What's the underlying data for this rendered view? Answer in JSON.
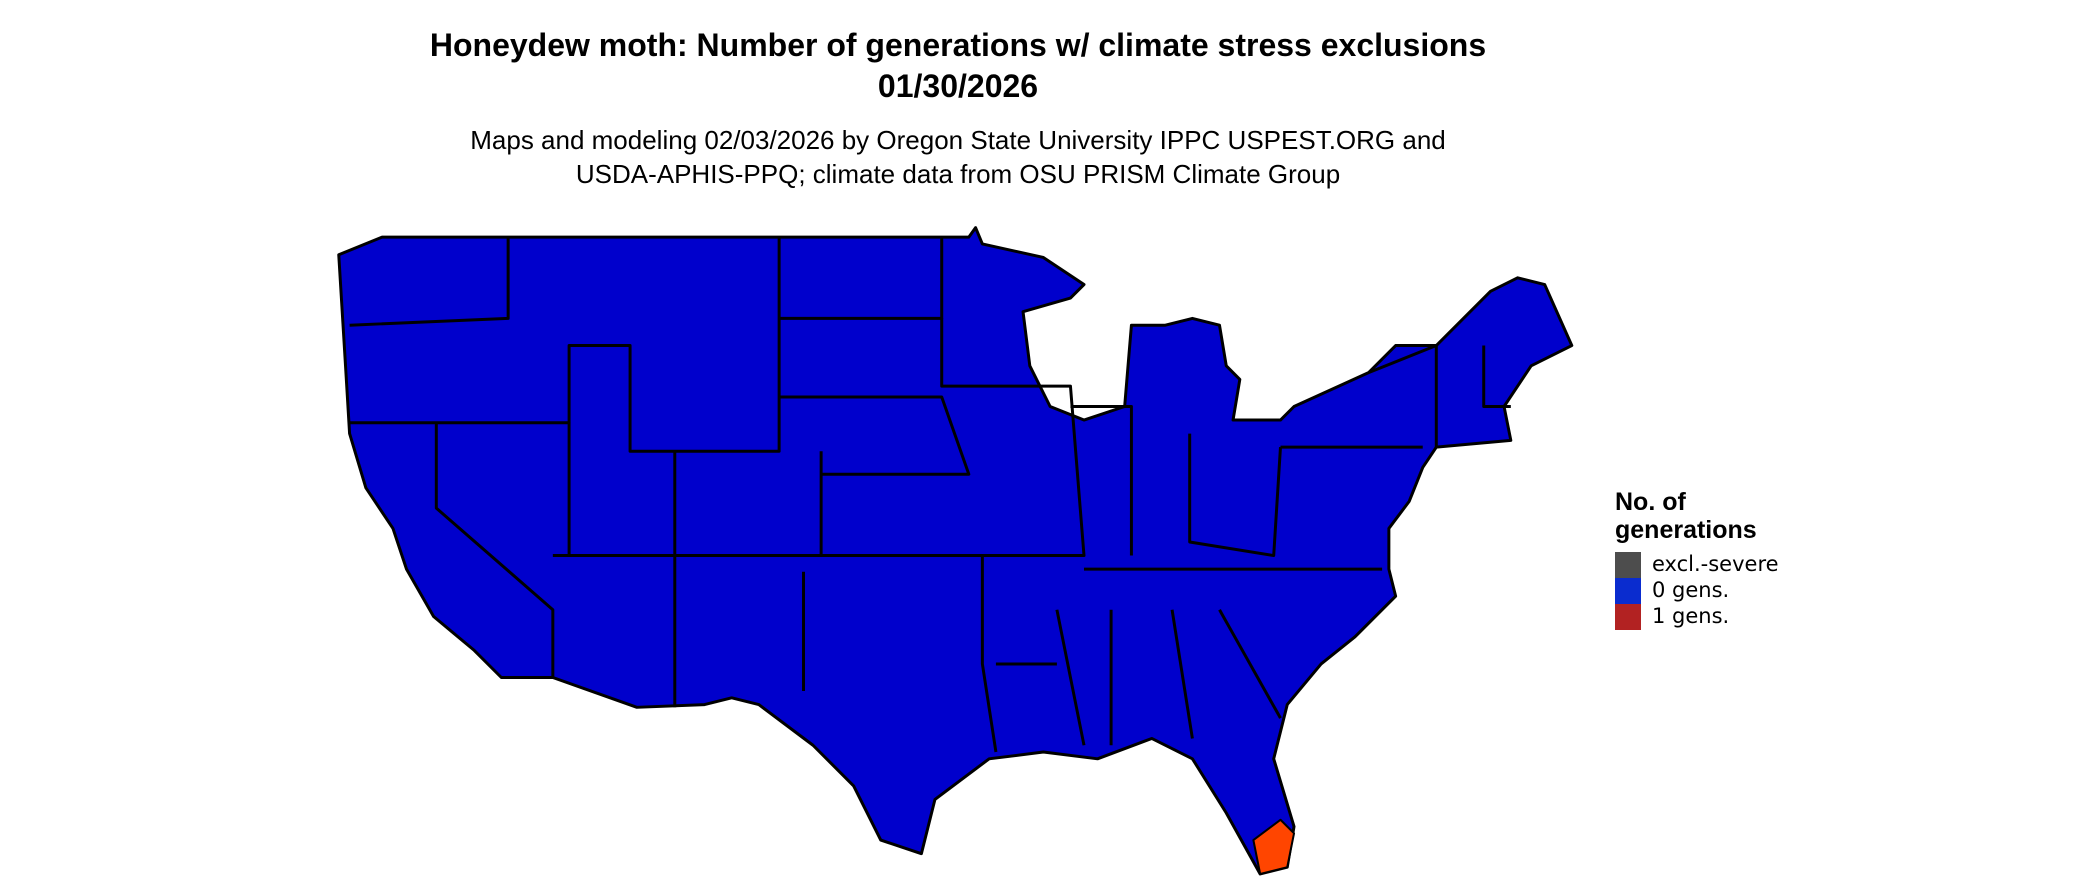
{
  "header": {
    "title": "Honeydew moth: Number of generations w/ climate stress exclusions",
    "date": "01/30/2026",
    "subtitle": [
      "Maps and modeling 02/03/2026 by Oregon State University IPPC USPEST.ORG and",
      "USDA-APHIS-PPQ; climate data from OSU PRISM Climate Group"
    ]
  },
  "legend": {
    "title": [
      "No. of",
      "generations"
    ],
    "items": [
      {
        "label": "excl.-severe",
        "color": "#4d4d4d"
      },
      {
        "label": "0 gens.",
        "color": "#0a2ccf"
      },
      {
        "label": "1 gens.",
        "color": "#b22222"
      }
    ]
  }
}
